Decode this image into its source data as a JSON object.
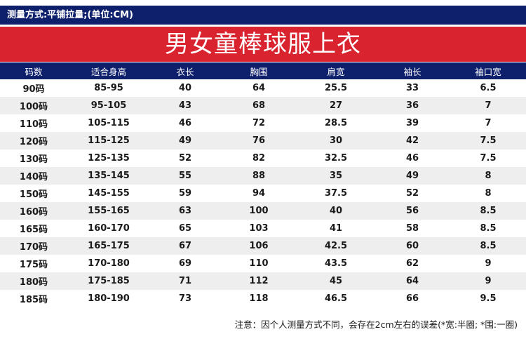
{
  "header": {
    "measure_note": "测量方式:平铺拉量;(单位:CM)",
    "title": "男女童棒球服上衣"
  },
  "table": {
    "columns": [
      "码数",
      "适合身高",
      "衣长",
      "胸围",
      "肩宽",
      "袖长",
      "袖口宽"
    ],
    "rows": [
      [
        "90码",
        "85-95",
        "40",
        "64",
        "25.5",
        "33",
        "6.5"
      ],
      [
        "100码",
        "95-105",
        "43",
        "68",
        "27",
        "36",
        "7"
      ],
      [
        "110码",
        "105-115",
        "46",
        "72",
        "28.5",
        "39",
        "7"
      ],
      [
        "120码",
        "115-125",
        "49",
        "76",
        "30",
        "42",
        "7.5"
      ],
      [
        "130码",
        "125-135",
        "52",
        "82",
        "32.5",
        "46",
        "7.5"
      ],
      [
        "140码",
        "135-145",
        "55",
        "88",
        "35",
        "49",
        "8"
      ],
      [
        "150码",
        "145-155",
        "59",
        "94",
        "37.5",
        "52",
        "8"
      ],
      [
        "160码",
        "155-165",
        "63",
        "100",
        "40",
        "56",
        "8.5"
      ],
      [
        "165码",
        "160-170",
        "65",
        "103",
        "41",
        "58",
        "8.5"
      ],
      [
        "170码",
        "165-175",
        "67",
        "106",
        "42.5",
        "60",
        "8.5"
      ],
      [
        "175码",
        "170-180",
        "69",
        "110",
        "43.5",
        "62",
        "9"
      ],
      [
        "180码",
        "175-185",
        "71",
        "112",
        "45",
        "64",
        "9"
      ],
      [
        "185码",
        "180-190",
        "73",
        "118",
        "46.5",
        "66",
        "9.5"
      ]
    ]
  },
  "footer": {
    "note": "注意：因个人测量方式不同，会存在2cm左右的误差(*宽:半圈; *围:一圈)"
  },
  "colors": {
    "navy": "#0e1f6c",
    "red": "#d9232e",
    "stripe": "#eeeeee"
  }
}
